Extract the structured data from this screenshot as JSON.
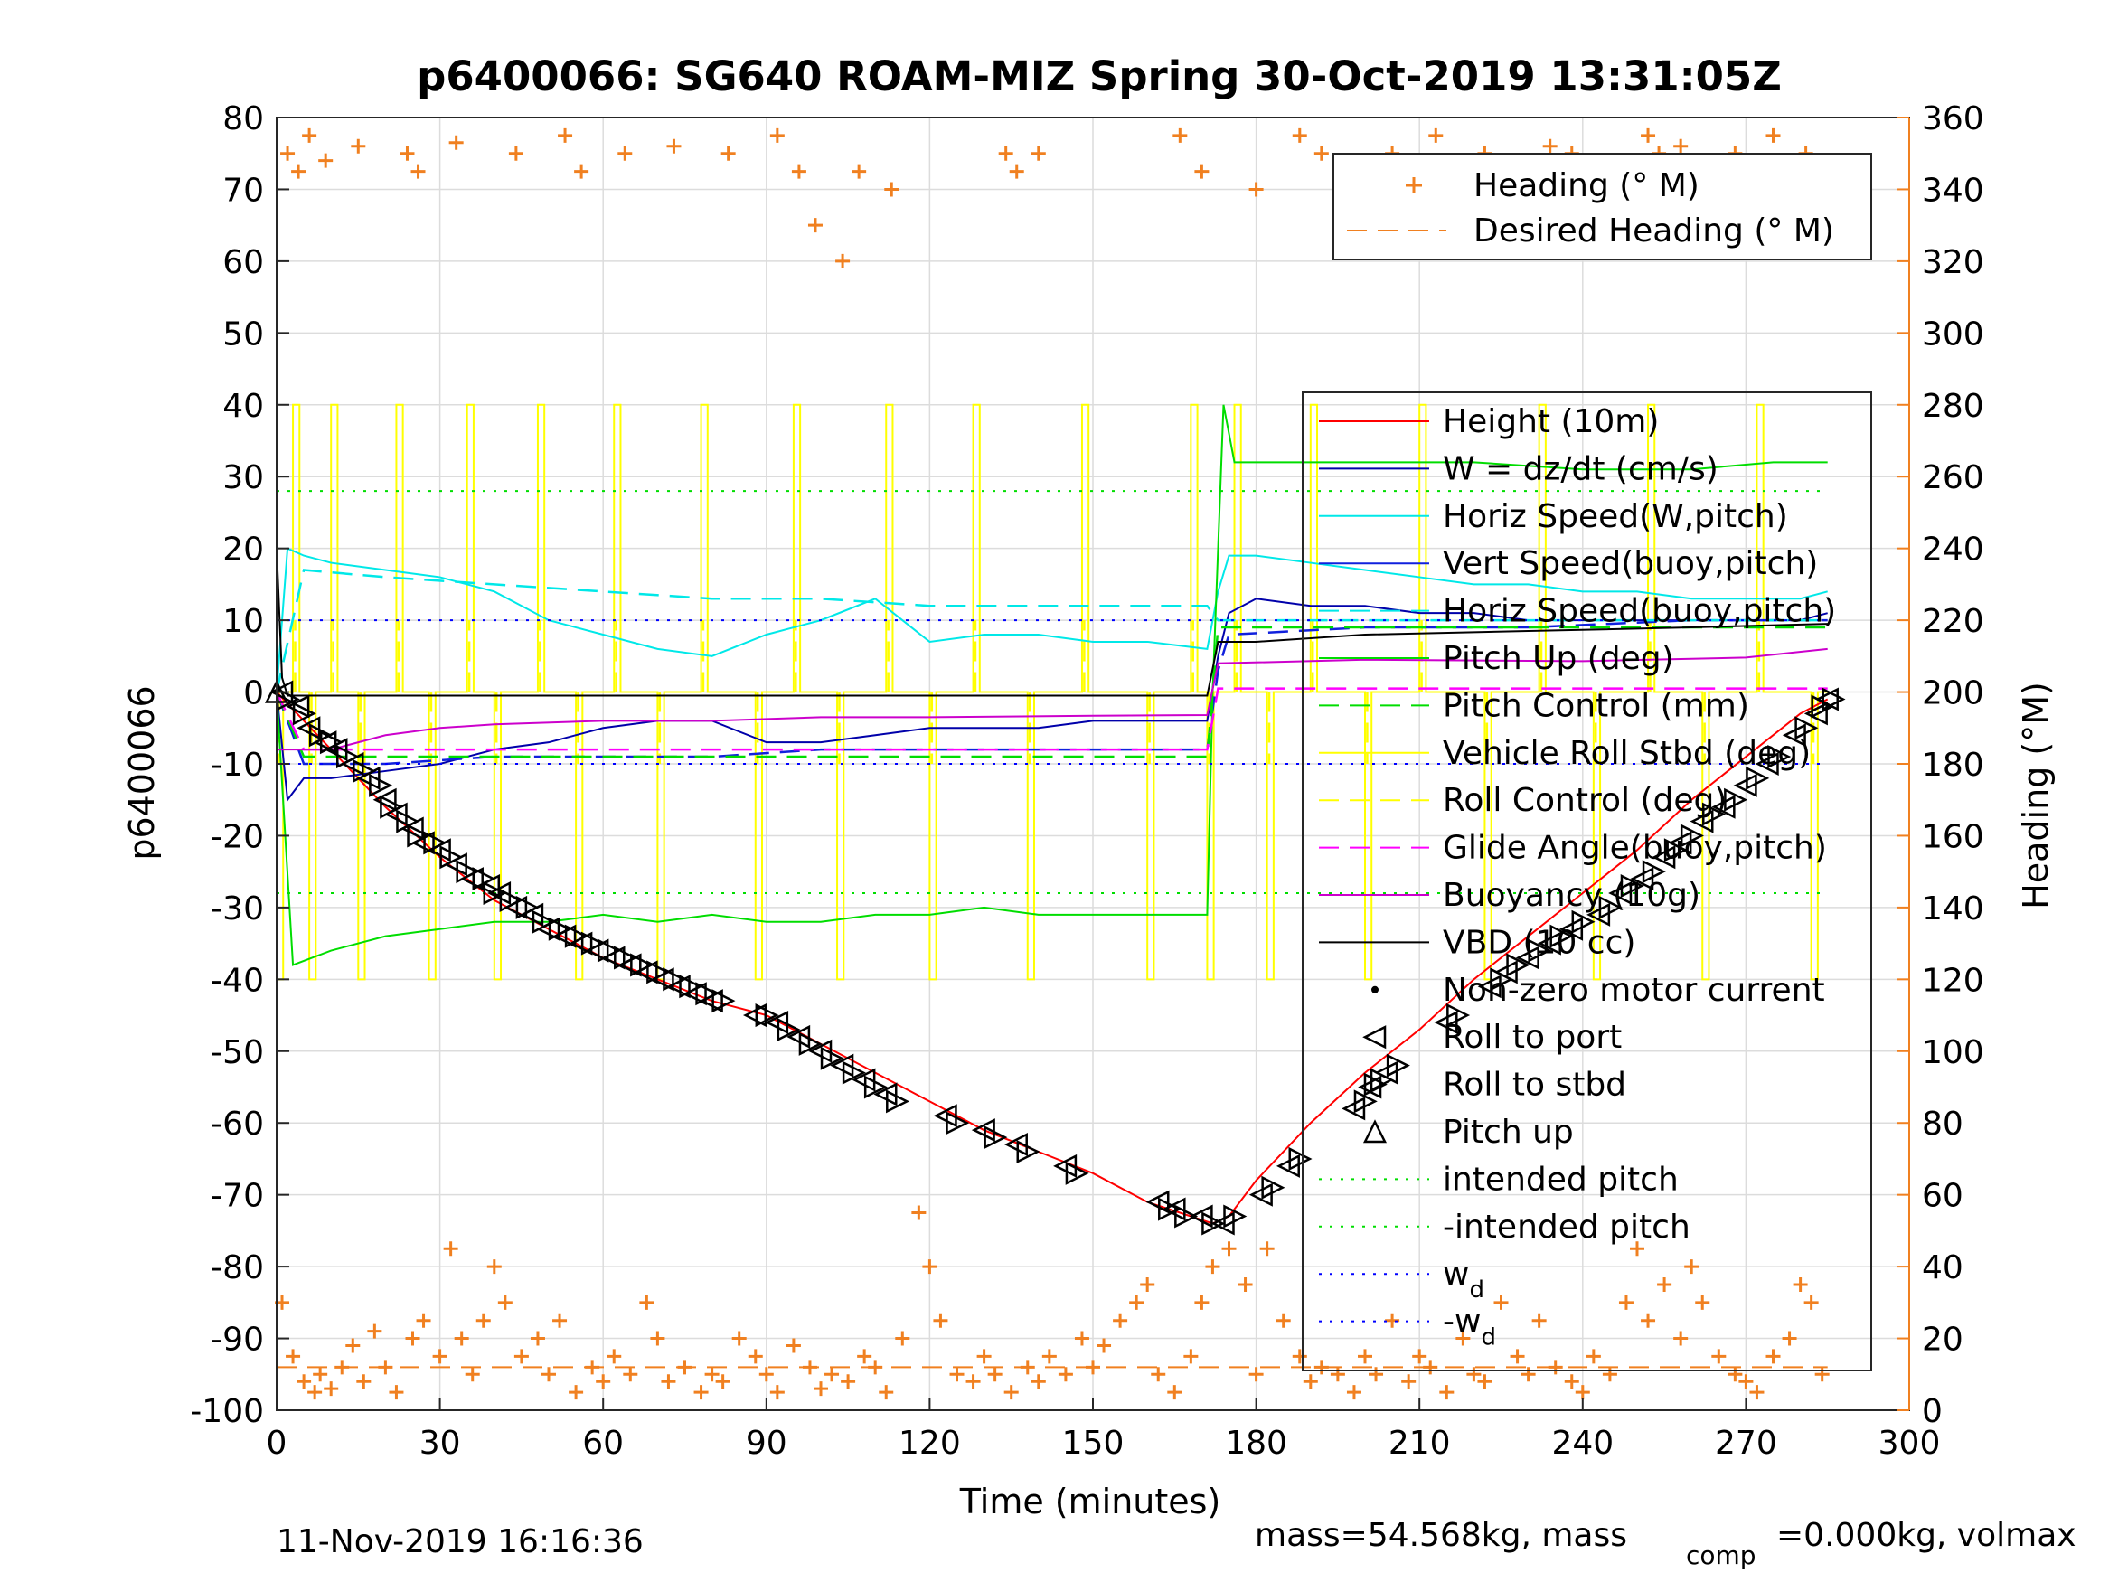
{
  "title": "p6400066: SG640 ROAM-MIZ Spring 30-Oct-2019 13:31:05Z",
  "footer": {
    "timestamp": "11-Nov-2019 16:16:36",
    "mass_text": "mass=54.568kg, mass",
    "mass_sub": "comp",
    "mass_text2": "=0.000kg, volmax"
  },
  "colors": {
    "heading": "#f08020",
    "height": "#ff0000",
    "w": "#0000aa",
    "horiz_speed": "#00e8e8",
    "vert_speed": "#1020dd",
    "pitch": "#00dd00",
    "roll": "#ffff00",
    "glide": "#ff00ff",
    "buoyancy": "#cc00cc",
    "vbd": "#000000",
    "wd": "#0000ff"
  },
  "chart_data": {
    "type": "line",
    "title": "p6400066: SG640 ROAM-MIZ Spring 30-Oct-2019 13:31:05Z",
    "xlabel": "Time (minutes)",
    "ylabel": "p6400066",
    "y2label": "Heading (°M)",
    "xlim": [
      0,
      300
    ],
    "ylim": [
      -100,
      80
    ],
    "y2lim": [
      0,
      360
    ],
    "xticks": [
      0,
      30,
      60,
      90,
      120,
      150,
      180,
      210,
      240,
      270,
      300
    ],
    "yticks": [
      -100,
      -90,
      -80,
      -70,
      -60,
      -50,
      -40,
      -30,
      -20,
      -10,
      0,
      10,
      20,
      30,
      40,
      50,
      60,
      70,
      80
    ],
    "y2ticks": [
      0,
      20,
      40,
      60,
      80,
      100,
      120,
      140,
      160,
      180,
      200,
      220,
      240,
      260,
      280,
      300,
      320,
      340,
      360
    ],
    "grid": true,
    "legend_heading": [
      "Heading (° M)",
      "Desired Heading (° M)"
    ],
    "legend_main": [
      "Height (10m)",
      "W = dz/dt (cm/s)",
      "Horiz Speed(W,pitch)",
      "Vert Speed(buoy,pitch)",
      "Horiz Speed(buoy,pitch)",
      "Pitch Up (deg)",
      "Pitch Control (mm)",
      "Vehicle Roll Stbd (deg)",
      "Roll Control (deg)",
      "Glide Angle(buoy,pitch)",
      "Buoyancy (10g)",
      "VBD (10 cc)",
      "Non-zero motor current",
      "Roll to port",
      "Roll to stbd",
      "Pitch up",
      "intended pitch",
      "-intended pitch",
      "w_d",
      "-w_d"
    ],
    "series": [
      {
        "name": "Height (10m)",
        "x": [
          0,
          10,
          20,
          30,
          40,
          50,
          60,
          70,
          80,
          90,
          100,
          110,
          120,
          130,
          140,
          150,
          160,
          168,
          172,
          175,
          180,
          190,
          200,
          210,
          220,
          230,
          240,
          250,
          260,
          270,
          280,
          285
        ],
        "y": [
          0,
          -8,
          -16,
          -23,
          -29,
          -33,
          -37,
          -40,
          -43,
          -45,
          -49,
          -53,
          -57,
          -61,
          -64,
          -67,
          -71,
          -73,
          -74,
          -73,
          -68,
          -60,
          -53,
          -47,
          -40,
          -34,
          -28,
          -22,
          -15,
          -9,
          -3,
          -1
        ]
      },
      {
        "name": "W = dz/dt (cm/s)",
        "x": [
          0,
          2,
          5,
          10,
          20,
          30,
          40,
          50,
          60,
          70,
          80,
          90,
          100,
          110,
          120,
          130,
          140,
          150,
          160,
          171,
          173,
          175,
          180,
          190,
          200,
          210,
          220,
          230,
          240,
          250,
          260,
          270,
          280,
          285
        ],
        "y": [
          0,
          -15,
          -12,
          -12,
          -11,
          -10,
          -8,
          -7,
          -5,
          -4,
          -4,
          -7,
          -7,
          -6,
          -5,
          -5,
          -5,
          -4,
          -4,
          -4,
          5,
          11,
          13,
          12,
          12,
          11,
          11,
          10,
          10,
          10,
          10,
          10,
          10,
          11
        ]
      },
      {
        "name": "Horiz Speed(W,pitch)",
        "x": [
          0,
          2,
          5,
          10,
          20,
          30,
          40,
          50,
          60,
          70,
          80,
          90,
          100,
          110,
          120,
          130,
          140,
          150,
          160,
          171,
          173,
          175,
          180,
          190,
          200,
          210,
          220,
          230,
          240,
          250,
          260,
          270,
          280,
          285
        ],
        "y": [
          0,
          20,
          19,
          18,
          17,
          16,
          14,
          10,
          8,
          6,
          5,
          8,
          10,
          13,
          7,
          8,
          8,
          7,
          7,
          6,
          14,
          19,
          19,
          18,
          17,
          16,
          15,
          15,
          14,
          14,
          13,
          13,
          13,
          14
        ]
      },
      {
        "name": "Vert Speed(buoy,pitch)",
        "x": [
          0,
          5,
          20,
          40,
          60,
          80,
          100,
          120,
          140,
          160,
          171,
          173,
          175,
          200,
          230,
          260,
          285
        ],
        "y": [
          0,
          -10,
          -10,
          -9,
          -9,
          -9,
          -8,
          -8,
          -8,
          -8,
          -8,
          3,
          8,
          9,
          9,
          10,
          10
        ]
      },
      {
        "name": "Horiz Speed(buoy,pitch)",
        "x": [
          0,
          5,
          20,
          40,
          60,
          80,
          100,
          120,
          140,
          160,
          171,
          173,
          175,
          200,
          230,
          260,
          285
        ],
        "y": [
          0,
          17,
          16,
          15,
          14,
          13,
          13,
          12,
          12,
          12,
          12,
          10,
          10,
          10,
          10,
          10,
          10
        ]
      },
      {
        "name": "Pitch Up (deg)",
        "x": [
          0,
          3,
          10,
          20,
          30,
          40,
          50,
          60,
          70,
          80,
          90,
          100,
          110,
          120,
          130,
          140,
          150,
          160,
          171,
          172,
          174,
          176,
          180,
          200,
          220,
          240,
          260,
          275,
          285
        ],
        "y": [
          0,
          -38,
          -36,
          -34,
          -33,
          -32,
          -32,
          -31,
          -32,
          -31,
          -32,
          -32,
          -31,
          -31,
          -30,
          -31,
          -31,
          -31,
          -31,
          0,
          40,
          32,
          32,
          32,
          32,
          31,
          31,
          32,
          32
        ]
      },
      {
        "name": "Pitch Control (mm)",
        "x": [
          0,
          5,
          171,
          173,
          285
        ],
        "y": [
          0,
          -9,
          -9,
          9,
          9
        ]
      },
      {
        "name": "Glide Angle(buoy,pitch)",
        "x": [
          0,
          5,
          171,
          173,
          285
        ],
        "y": [
          0,
          -8,
          -8,
          0.5,
          0.5
        ]
      },
      {
        "name": "Buoyancy (10g)",
        "x": [
          0,
          5,
          10,
          20,
          30,
          40,
          60,
          80,
          100,
          120,
          150,
          171,
          173,
          200,
          240,
          270,
          285
        ],
        "y": [
          -8,
          -8,
          -8,
          -6,
          -5,
          -4.5,
          -4,
          -4,
          -3.5,
          -3.5,
          -3.3,
          -3.2,
          4,
          4.5,
          4.3,
          4.8,
          6
        ]
      },
      {
        "name": "VBD (10 cc)",
        "x": [
          0,
          1,
          2,
          171,
          173,
          180,
          200,
          230,
          260,
          285
        ],
        "y": [
          20,
          2,
          -0.5,
          -0.5,
          7,
          7,
          8,
          8.5,
          9,
          9.5
        ]
      },
      {
        "name": "intended pitch",
        "x": [
          0,
          285
        ],
        "y": [
          28,
          28
        ]
      },
      {
        "name": "-intended pitch",
        "x": [
          0,
          285
        ],
        "y": [
          -28,
          -28
        ]
      },
      {
        "name": "w_d",
        "x": [
          0,
          285
        ],
        "y": [
          10,
          10
        ]
      },
      {
        "name": "-w_d",
        "x": [
          0,
          285
        ],
        "y": [
          -10,
          -10
        ]
      },
      {
        "name": "Desired Heading (° M)",
        "axis": "right",
        "x": [
          0,
          285
        ],
        "y": [
          12,
          12
        ]
      }
    ],
    "heading_points": {
      "axis": "right",
      "x": [
        1,
        3,
        5,
        7,
        8,
        10,
        12,
        14,
        16,
        18,
        20,
        22,
        25,
        27,
        30,
        32,
        34,
        36,
        38,
        40,
        42,
        45,
        48,
        50,
        52,
        55,
        58,
        60,
        62,
        65,
        68,
        70,
        72,
        75,
        78,
        80,
        82,
        85,
        88,
        90,
        92,
        95,
        98,
        100,
        102,
        105,
        108,
        110,
        112,
        115,
        118,
        120,
        122,
        125,
        128,
        130,
        132,
        135,
        138,
        140,
        142,
        145,
        148,
        150,
        152,
        155,
        158,
        160,
        162,
        165,
        168,
        170,
        172,
        175,
        178,
        180,
        182,
        185,
        188,
        190,
        192,
        195,
        198,
        200,
        202,
        205,
        208,
        210,
        212,
        215,
        218,
        220,
        222,
        225,
        228,
        230,
        232,
        235,
        238,
        240,
        242,
        245,
        248,
        250,
        252,
        255,
        258,
        260,
        262,
        265,
        268,
        270,
        272,
        275,
        278,
        280,
        282,
        284,
        2,
        4,
        6,
        9,
        15,
        24,
        26,
        33,
        44,
        53,
        56,
        64,
        73,
        83,
        92,
        96,
        99,
        104,
        107,
        113,
        134,
        136,
        140,
        166,
        170,
        180,
        188,
        192,
        196,
        205,
        213,
        222,
        226,
        234,
        238,
        246,
        252,
        254,
        258,
        264,
        268,
        275,
        281,
        283
      ],
      "y": [
        30,
        15,
        8,
        5,
        10,
        6,
        12,
        18,
        8,
        22,
        12,
        5,
        20,
        25,
        15,
        45,
        20,
        10,
        25,
        40,
        30,
        15,
        20,
        10,
        25,
        5,
        12,
        8,
        15,
        10,
        30,
        20,
        8,
        12,
        5,
        10,
        8,
        20,
        15,
        10,
        5,
        18,
        12,
        6,
        10,
        8,
        15,
        12,
        5,
        20,
        55,
        40,
        25,
        10,
        8,
        15,
        10,
        5,
        12,
        8,
        15,
        10,
        20,
        12,
        18,
        25,
        30,
        35,
        10,
        5,
        15,
        30,
        40,
        45,
        35,
        10,
        45,
        25,
        15,
        8,
        12,
        10,
        5,
        15,
        10,
        25,
        8,
        15,
        12,
        5,
        20,
        10,
        8,
        30,
        15,
        10,
        25,
        12,
        8,
        5,
        15,
        10,
        30,
        45,
        25,
        35,
        20,
        40,
        30,
        15,
        10,
        8,
        5,
        15,
        20,
        35,
        30,
        10,
        350,
        345,
        355,
        348,
        352,
        350,
        345,
        353,
        350,
        355,
        345,
        350,
        352,
        350,
        355,
        345,
        330,
        320,
        345,
        340,
        350,
        345,
        350,
        355,
        345,
        340,
        355,
        350,
        345,
        350,
        355,
        350,
        345,
        352,
        350,
        345,
        355,
        350,
        352,
        348,
        350,
        355,
        350,
        345
      ]
    },
    "roll_port_markers": {
      "x": [
        1,
        4,
        6,
        9,
        11,
        14,
        17,
        20,
        22,
        25,
        27,
        30,
        33,
        36,
        39,
        41,
        44,
        47,
        50,
        53,
        56,
        59,
        62,
        65,
        68,
        71,
        74,
        77,
        80,
        88,
        92,
        96,
        100,
        104,
        108,
        112,
        123,
        130,
        136,
        145,
        162,
        165,
        170,
        174,
        181,
        186,
        198,
        201,
        204,
        215,
        223,
        226,
        230,
        234,
        238,
        243,
        247,
        251,
        255,
        258,
        262,
        266,
        270,
        274,
        279,
        283,
        285
      ],
      "y": [
        0,
        -2,
        -5,
        -7,
        -8,
        -10,
        -12,
        -15,
        -17,
        -19,
        -21,
        -22,
        -24,
        -26,
        -27,
        -28,
        -30,
        -31,
        -33,
        -34,
        -35,
        -36,
        -37,
        -38,
        -39,
        -40,
        -41,
        -42,
        -43,
        -45,
        -46,
        -48,
        -50,
        -52,
        -54,
        -56,
        -59,
        -61,
        -63,
        -66,
        -71,
        -72,
        -73,
        -74,
        -70,
        -66,
        -58,
        -55,
        -53,
        -46,
        -41,
        -39,
        -37,
        -35,
        -33,
        -31,
        -28,
        -26,
        -23,
        -21,
        -18,
        -16,
        -13,
        -10,
        -6,
        -3,
        -1
      ]
    },
    "roll_stbd_markers": {
      "x": [
        2,
        5,
        8,
        10,
        13,
        16,
        19,
        21,
        24,
        26,
        29,
        32,
        35,
        38,
        40,
        43,
        46,
        49,
        52,
        55,
        58,
        61,
        64,
        67,
        70,
        73,
        76,
        79,
        82,
        90,
        94,
        98,
        102,
        106,
        110,
        114,
        125,
        132,
        138,
        147,
        164,
        167,
        172,
        176,
        183,
        188,
        200,
        203,
        206,
        217,
        225,
        228,
        232,
        236,
        240,
        245,
        249,
        253,
        257,
        260,
        264,
        268,
        272,
        276,
        281,
        284,
        286
      ],
      "y": [
        -1,
        -3,
        -6,
        -7,
        -9,
        -11,
        -13,
        -16,
        -18,
        -20,
        -21,
        -23,
        -25,
        -26,
        -28,
        -29,
        -30,
        -32,
        -33,
        -34,
        -35,
        -36,
        -37,
        -38,
        -39,
        -40,
        -41,
        -42,
        -43,
        -45,
        -47,
        -49,
        -51,
        -53,
        -55,
        -57,
        -60,
        -62,
        -64,
        -67,
        -72,
        -73,
        -74,
        -73,
        -69,
        -65,
        -57,
        -54,
        -52,
        -45,
        -40,
        -38,
        -36,
        -34,
        -32,
        -30,
        -27,
        -25,
        -22,
        -20,
        -17,
        -15,
        -12,
        -9,
        -5,
        -2,
        -1
      ]
    },
    "pitch_up_markers": {
      "x": [
        0
      ],
      "y": [
        0
      ]
    }
  }
}
